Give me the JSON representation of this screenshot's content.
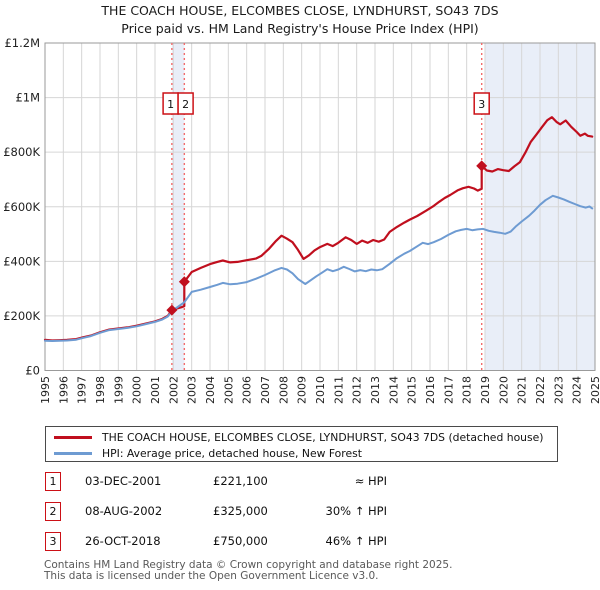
{
  "title": {
    "line1": "THE COACH HOUSE, ELCOMBES CLOSE, LYNDHURST, SO43 7DS",
    "line2": "Price paid vs. HM Land Registry's House Price Index (HPI)"
  },
  "chart_data": {
    "type": "line",
    "xlim": [
      1995,
      2025
    ],
    "ylim": [
      0,
      1200000
    ],
    "x_ticks": [
      1995,
      1996,
      1997,
      1998,
      1999,
      2000,
      2001,
      2002,
      2003,
      2004,
      2005,
      2006,
      2007,
      2008,
      2009,
      2010,
      2011,
      2012,
      2013,
      2014,
      2015,
      2016,
      2017,
      2018,
      2019,
      2020,
      2021,
      2022,
      2023,
      2024,
      2025
    ],
    "y_ticks": [
      {
        "value": 0,
        "label": "£0"
      },
      {
        "value": 200000,
        "label": "£200K"
      },
      {
        "value": 400000,
        "label": "£400K"
      },
      {
        "value": 600000,
        "label": "£600K"
      },
      {
        "value": 800000,
        "label": "£800K"
      },
      {
        "value": 1000000,
        "label": "£1M"
      },
      {
        "value": 1200000,
        "label": "£1.2M"
      }
    ],
    "grid": true,
    "legend_position": "bottom",
    "colors": {
      "property_line": "#c00f1e",
      "hpi_line": "#6e9bd2",
      "grid": "#d6d6d6",
      "frame": "#9a9a9a",
      "band": "#e9eef8",
      "marker_dotted_line": "#f26b6b",
      "marker_box_border": "#cc1016",
      "tick_text": "#222222"
    },
    "bands": [
      {
        "from": 2001.92,
        "to": 2002.6
      },
      {
        "from": 2019.0,
        "to": 2025.0
      }
    ],
    "markers": [
      {
        "n": "1",
        "x": 2001.92,
        "y": 221100
      },
      {
        "n": "2",
        "x": 2002.6,
        "y": 325000
      },
      {
        "n": "3",
        "x": 2018.82,
        "y": 750000
      }
    ],
    "series": [
      {
        "name": "THE COACH HOUSE, ELCOMBES CLOSE, LYNDHURST, SO43 7DS (detached house)",
        "color": "#c00f1e",
        "width": 2.2,
        "points": [
          [
            1995.0,
            112000
          ],
          [
            1995.4,
            110000
          ],
          [
            1995.8,
            111000
          ],
          [
            1996.2,
            112000
          ],
          [
            1996.7,
            115000
          ],
          [
            1997.1,
            122000
          ],
          [
            1997.5,
            128000
          ],
          [
            1998.0,
            140000
          ],
          [
            1998.5,
            150000
          ],
          [
            1999.0,
            154000
          ],
          [
            1999.5,
            158000
          ],
          [
            2000.0,
            164000
          ],
          [
            2000.5,
            172000
          ],
          [
            2001.0,
            180000
          ],
          [
            2001.4,
            189000
          ],
          [
            2001.7,
            200000
          ],
          [
            2001.92,
            221100
          ],
          [
            2002.2,
            227000
          ],
          [
            2002.45,
            232000
          ],
          [
            2002.6,
            236000
          ],
          [
            2002.6,
            325000
          ],
          [
            2003.0,
            361000
          ],
          [
            2003.5,
            376000
          ],
          [
            2004.0,
            390000
          ],
          [
            2004.4,
            398000
          ],
          [
            2004.7,
            403000
          ],
          [
            2005.1,
            396000
          ],
          [
            2005.5,
            398000
          ],
          [
            2006.0,
            404000
          ],
          [
            2006.5,
            410000
          ],
          [
            2006.8,
            420000
          ],
          [
            2007.2,
            445000
          ],
          [
            2007.6,
            475000
          ],
          [
            2007.9,
            494000
          ],
          [
            2008.2,
            483000
          ],
          [
            2008.5,
            470000
          ],
          [
            2008.8,
            442000
          ],
          [
            2009.1,
            409000
          ],
          [
            2009.4,
            422000
          ],
          [
            2009.7,
            440000
          ],
          [
            2010.0,
            452000
          ],
          [
            2010.4,
            464000
          ],
          [
            2010.7,
            456000
          ],
          [
            2011.0,
            468000
          ],
          [
            2011.4,
            488000
          ],
          [
            2011.7,
            478000
          ],
          [
            2012.0,
            464000
          ],
          [
            2012.3,
            476000
          ],
          [
            2012.6,
            468000
          ],
          [
            2012.9,
            478000
          ],
          [
            2013.2,
            472000
          ],
          [
            2013.5,
            480000
          ],
          [
            2013.8,
            508000
          ],
          [
            2014.2,
            526000
          ],
          [
            2014.6,
            542000
          ],
          [
            2014.9,
            553000
          ],
          [
            2015.3,
            566000
          ],
          [
            2015.8,
            586000
          ],
          [
            2016.2,
            603000
          ],
          [
            2016.5,
            618000
          ],
          [
            2016.8,
            632000
          ],
          [
            2017.1,
            643000
          ],
          [
            2017.5,
            660000
          ],
          [
            2017.8,
            668000
          ],
          [
            2018.1,
            673000
          ],
          [
            2018.4,
            667000
          ],
          [
            2018.6,
            659000
          ],
          [
            2018.82,
            666000
          ],
          [
            2018.82,
            750000
          ],
          [
            2019.1,
            733000
          ],
          [
            2019.4,
            729000
          ],
          [
            2019.7,
            738000
          ],
          [
            2020.0,
            734000
          ],
          [
            2020.3,
            731000
          ],
          [
            2020.6,
            748000
          ],
          [
            2020.9,
            763000
          ],
          [
            2021.2,
            798000
          ],
          [
            2021.5,
            838000
          ],
          [
            2021.8,
            864000
          ],
          [
            2022.1,
            891000
          ],
          [
            2022.4,
            917000
          ],
          [
            2022.65,
            928000
          ],
          [
            2022.9,
            911000
          ],
          [
            2023.1,
            902000
          ],
          [
            2023.4,
            916000
          ],
          [
            2023.7,
            893000
          ],
          [
            2024.0,
            874000
          ],
          [
            2024.2,
            860000
          ],
          [
            2024.45,
            868000
          ],
          [
            2024.6,
            860000
          ],
          [
            2024.85,
            857000
          ]
        ]
      },
      {
        "name": "HPI: Average price, detached house, New Forest",
        "color": "#6e9bd2",
        "width": 2,
        "points": [
          [
            1995.0,
            109000
          ],
          [
            1995.4,
            108000
          ],
          [
            1995.8,
            109000
          ],
          [
            1996.2,
            110000
          ],
          [
            1996.7,
            113000
          ],
          [
            1997.1,
            120000
          ],
          [
            1997.5,
            126000
          ],
          [
            1998.0,
            138000
          ],
          [
            1998.5,
            148000
          ],
          [
            1999.0,
            152000
          ],
          [
            1999.5,
            156000
          ],
          [
            2000.0,
            162000
          ],
          [
            2000.5,
            170000
          ],
          [
            2001.0,
            178000
          ],
          [
            2001.4,
            187000
          ],
          [
            2001.7,
            198000
          ],
          [
            2001.92,
            219000
          ],
          [
            2002.2,
            231000
          ],
          [
            2002.6,
            250000
          ],
          [
            2003.0,
            288000
          ],
          [
            2003.5,
            296000
          ],
          [
            2004.0,
            306000
          ],
          [
            2004.4,
            314000
          ],
          [
            2004.7,
            321000
          ],
          [
            2005.1,
            316000
          ],
          [
            2005.5,
            318000
          ],
          [
            2006.0,
            324000
          ],
          [
            2006.5,
            336000
          ],
          [
            2007.0,
            350000
          ],
          [
            2007.5,
            366000
          ],
          [
            2007.9,
            376000
          ],
          [
            2008.2,
            370000
          ],
          [
            2008.5,
            356000
          ],
          [
            2008.8,
            335000
          ],
          [
            2009.2,
            317000
          ],
          [
            2009.5,
            331000
          ],
          [
            2009.8,
            345000
          ],
          [
            2010.1,
            358000
          ],
          [
            2010.4,
            371000
          ],
          [
            2010.7,
            364000
          ],
          [
            2011.0,
            370000
          ],
          [
            2011.3,
            380000
          ],
          [
            2011.6,
            372000
          ],
          [
            2011.9,
            363000
          ],
          [
            2012.2,
            368000
          ],
          [
            2012.5,
            364000
          ],
          [
            2012.8,
            370000
          ],
          [
            2013.1,
            367000
          ],
          [
            2013.4,
            371000
          ],
          [
            2013.8,
            391000
          ],
          [
            2014.2,
            412000
          ],
          [
            2014.6,
            428000
          ],
          [
            2014.9,
            438000
          ],
          [
            2015.3,
            455000
          ],
          [
            2015.6,
            468000
          ],
          [
            2015.9,
            463000
          ],
          [
            2016.2,
            470000
          ],
          [
            2016.6,
            482000
          ],
          [
            2017.0,
            497000
          ],
          [
            2017.4,
            510000
          ],
          [
            2017.7,
            515000
          ],
          [
            2018.0,
            519000
          ],
          [
            2018.3,
            514000
          ],
          [
            2018.6,
            517000
          ],
          [
            2018.9,
            519000
          ],
          [
            2019.2,
            512000
          ],
          [
            2019.5,
            508000
          ],
          [
            2019.8,
            505000
          ],
          [
            2020.1,
            501000
          ],
          [
            2020.4,
            509000
          ],
          [
            2020.7,
            529000
          ],
          [
            2021.0,
            546000
          ],
          [
            2021.4,
            567000
          ],
          [
            2021.7,
            586000
          ],
          [
            2022.0,
            607000
          ],
          [
            2022.3,
            624000
          ],
          [
            2022.7,
            640000
          ],
          [
            2023.0,
            634000
          ],
          [
            2023.3,
            627000
          ],
          [
            2023.6,
            618000
          ],
          [
            2023.9,
            610000
          ],
          [
            2024.2,
            602000
          ],
          [
            2024.5,
            597000
          ],
          [
            2024.7,
            601000
          ],
          [
            2024.85,
            594000
          ]
        ]
      }
    ]
  },
  "legend": {
    "items": [
      {
        "label": "THE COACH HOUSE, ELCOMBES CLOSE, LYNDHURST, SO43 7DS (detached house)",
        "color": "#c00f1e"
      },
      {
        "label": "HPI: Average price, detached house, New Forest",
        "color": "#6e9bd2"
      }
    ]
  },
  "transactions": [
    {
      "n": "1",
      "date": "03-DEC-2001",
      "price": "£221,100",
      "vs_hpi": "≈ HPI"
    },
    {
      "n": "2",
      "date": "08-AUG-2002",
      "price": "£325,000",
      "vs_hpi": "30% ↑ HPI"
    },
    {
      "n": "3",
      "date": "26-OCT-2018",
      "price": "£750,000",
      "vs_hpi": "46% ↑ HPI"
    }
  ],
  "footer": {
    "line1": "Contains HM Land Registry data © Crown copyright and database right 2025.",
    "line2": "This data is licensed under the Open Government Licence v3.0."
  }
}
